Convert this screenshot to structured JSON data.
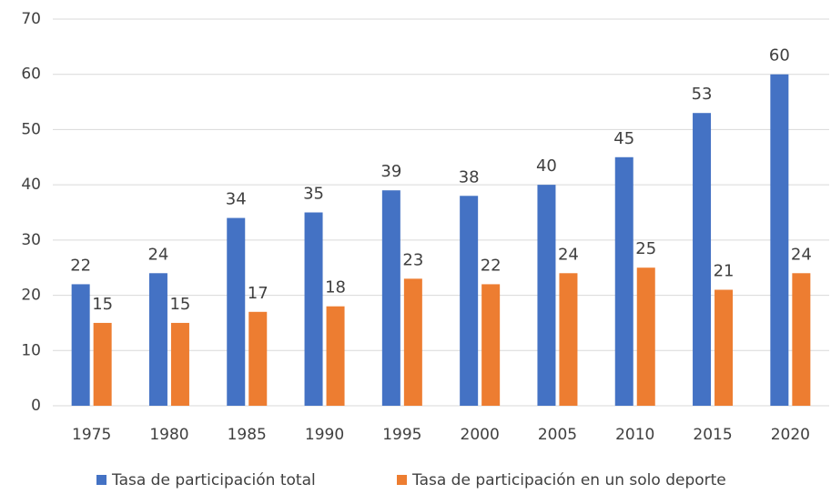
{
  "chart_data": {
    "type": "bar",
    "categories": [
      "1975",
      "1980",
      "1985",
      "1990",
      "1995",
      "2000",
      "2005",
      "2010",
      "2015",
      "2020"
    ],
    "series": [
      {
        "name": "Tasa de participación total",
        "color": "#4472c4",
        "values": [
          22,
          24,
          34,
          35,
          39,
          38,
          40,
          45,
          53,
          60
        ]
      },
      {
        "name": "Tasa de participación en un solo deporte",
        "color": "#ed7d31",
        "values": [
          15,
          15,
          17,
          18,
          23,
          22,
          24,
          25,
          21,
          24
        ]
      }
    ],
    "ylim": [
      0,
      70
    ],
    "yticks": [
      0,
      10,
      20,
      30,
      40,
      50,
      60,
      70
    ],
    "grid": true,
    "legend": "bottom"
  }
}
